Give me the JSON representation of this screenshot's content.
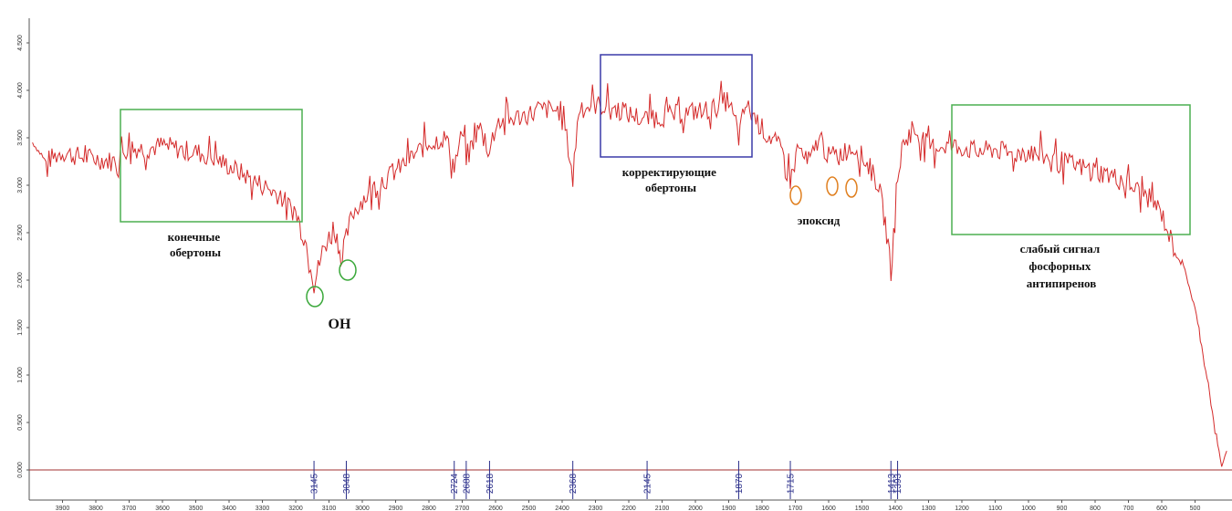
{
  "chart_data": {
    "type": "line",
    "title": "",
    "xlabel": "",
    "ylabel": "",
    "x_reversed": true,
    "xlim": [
      4000,
      400
    ],
    "ylim": [
      0,
      4.8
    ],
    "colors": {
      "spectrum": "#d42a2a",
      "baseline": "#a03030",
      "peak_marker": "#2a2e8a",
      "green_box": "#4caf50",
      "blue_box": "#3a3aa8",
      "orange_circle": "#e08020",
      "green_circle": "#3aa83a"
    },
    "y_ticks": [
      {
        "value": 0.0,
        "label": "0.000"
      },
      {
        "value": 0.5,
        "label": "0.500"
      },
      {
        "value": 1.0,
        "label": "1.000"
      },
      {
        "value": 1.5,
        "label": "1.500"
      },
      {
        "value": 2.0,
        "label": "2.000"
      },
      {
        "value": 2.5,
        "label": "2.500"
      },
      {
        "value": 3.0,
        "label": "3.000"
      },
      {
        "value": 3.5,
        "label": "3.500"
      },
      {
        "value": 4.0,
        "label": "4.000"
      },
      {
        "value": 4.5,
        "label": "4.500"
      }
    ],
    "x_ticks": [
      {
        "value": 3900,
        "label": "3900"
      },
      {
        "value": 3800,
        "label": "3800"
      },
      {
        "value": 3700,
        "label": "3700"
      },
      {
        "value": 3600,
        "label": "3600"
      },
      {
        "value": 3500,
        "label": "3500"
      },
      {
        "value": 3400,
        "label": "3400"
      },
      {
        "value": 3300,
        "label": "3300"
      },
      {
        "value": 3200,
        "label": "3200"
      },
      {
        "value": 3100,
        "label": "3100"
      },
      {
        "value": 3000,
        "label": "3000"
      },
      {
        "value": 2900,
        "label": "2900"
      },
      {
        "value": 2800,
        "label": "2800"
      },
      {
        "value": 2700,
        "label": "2700"
      },
      {
        "value": 2600,
        "label": "2600"
      },
      {
        "value": 2500,
        "label": "2500"
      },
      {
        "value": 2400,
        "label": "2400"
      },
      {
        "value": 2300,
        "label": "2300"
      },
      {
        "value": 2200,
        "label": "2200"
      },
      {
        "value": 2100,
        "label": "2100"
      },
      {
        "value": 2000,
        "label": "2000"
      },
      {
        "value": 1900,
        "label": "1900"
      },
      {
        "value": 1800,
        "label": "1800"
      },
      {
        "value": 1700,
        "label": "1700"
      },
      {
        "value": 1600,
        "label": "1600"
      },
      {
        "value": 1500,
        "label": "1500"
      },
      {
        "value": 1400,
        "label": "1400"
      },
      {
        "value": 1300,
        "label": "1300"
      },
      {
        "value": 1200,
        "label": "1200"
      },
      {
        "value": 1100,
        "label": "1100"
      },
      {
        "value": 1000,
        "label": "1000"
      },
      {
        "value": 900,
        "label": "900"
      },
      {
        "value": 800,
        "label": "800"
      },
      {
        "value": 700,
        "label": "700"
      },
      {
        "value": 600,
        "label": "600"
      },
      {
        "value": 500,
        "label": "500"
      }
    ],
    "series": [
      {
        "x": [
          3990,
          3950,
          3900,
          3850,
          3800,
          3750,
          3700,
          3650,
          3600,
          3550,
          3500,
          3450,
          3400,
          3350,
          3300,
          3250,
          3200,
          3180,
          3160,
          3145,
          3120,
          3100,
          3080,
          3060,
          3048,
          3030,
          3000,
          2950,
          2900,
          2850,
          2800,
          2750,
          2724,
          2700,
          2688,
          2650,
          2618,
          2600,
          2550,
          2500,
          2450,
          2400,
          2368,
          2350,
          2300,
          2250,
          2200,
          2150,
          2100,
          2050,
          2000,
          1950,
          1900,
          1870,
          1850,
          1800,
          1760,
          1730,
          1715,
          1690,
          1660,
          1630,
          1600,
          1560,
          1520,
          1480,
          1450,
          1430,
          1413,
          1405,
          1393,
          1380,
          1350,
          1320,
          1300,
          1250,
          1200,
          1150,
          1100,
          1050,
          1000,
          950,
          900,
          850,
          800,
          750,
          700,
          650,
          620,
          600,
          560,
          530,
          500,
          480,
          460,
          440,
          420,
          405
        ],
        "y": [
          3.45,
          3.25,
          3.35,
          3.3,
          3.28,
          3.25,
          3.4,
          3.38,
          3.42,
          3.38,
          3.35,
          3.3,
          3.2,
          3.1,
          3.0,
          2.9,
          2.7,
          2.5,
          2.3,
          1.95,
          2.3,
          2.45,
          2.5,
          2.2,
          2.45,
          2.7,
          2.85,
          3.0,
          3.15,
          3.3,
          3.45,
          3.5,
          3.2,
          3.55,
          3.3,
          3.6,
          3.35,
          3.65,
          3.7,
          3.75,
          3.8,
          3.78,
          3.1,
          3.8,
          3.85,
          3.82,
          3.75,
          3.7,
          3.72,
          3.75,
          3.78,
          3.8,
          3.9,
          3.5,
          3.85,
          3.6,
          3.45,
          3.3,
          3.05,
          3.4,
          3.2,
          3.5,
          3.3,
          3.35,
          3.4,
          3.2,
          3.0,
          2.6,
          2.1,
          2.4,
          3.0,
          3.4,
          3.6,
          3.5,
          3.4,
          3.42,
          3.4,
          3.35,
          3.38,
          3.32,
          3.35,
          3.3,
          3.25,
          3.2,
          3.15,
          3.1,
          3.0,
          2.9,
          2.8,
          2.7,
          2.3,
          2.1,
          1.7,
          1.3,
          0.9,
          0.4,
          0.05,
          0.2
        ]
      }
    ],
    "peak_markers": [
      {
        "x": 3145,
        "label": "3145"
      },
      {
        "x": 3048,
        "label": "3048"
      },
      {
        "x": 2724,
        "label": "2724"
      },
      {
        "x": 2688,
        "label": "2688"
      },
      {
        "x": 2618,
        "label": "2618"
      },
      {
        "x": 2368,
        "label": "2368"
      },
      {
        "x": 2145,
        "label": "2145"
      },
      {
        "x": 1870,
        "label": "1870"
      },
      {
        "x": 1715,
        "label": "1715"
      },
      {
        "x": 1413,
        "label": "1413"
      },
      {
        "x": 1393,
        "label": "1393"
      }
    ],
    "annotations": [
      {
        "id": "end-overtones",
        "text_lines": [
          "конечные",
          "обертоны"
        ]
      },
      {
        "id": "correcting-overtones",
        "text_lines": [
          "корректирующие",
          "обертоны"
        ]
      },
      {
        "id": "oh",
        "text_lines": [
          "OH"
        ]
      },
      {
        "id": "epoxide",
        "text_lines": [
          "эпоксид"
        ]
      },
      {
        "id": "weak-signal",
        "text_lines": [
          "слабый сигнал",
          "фосфорных",
          "антипиренов"
        ]
      }
    ]
  }
}
